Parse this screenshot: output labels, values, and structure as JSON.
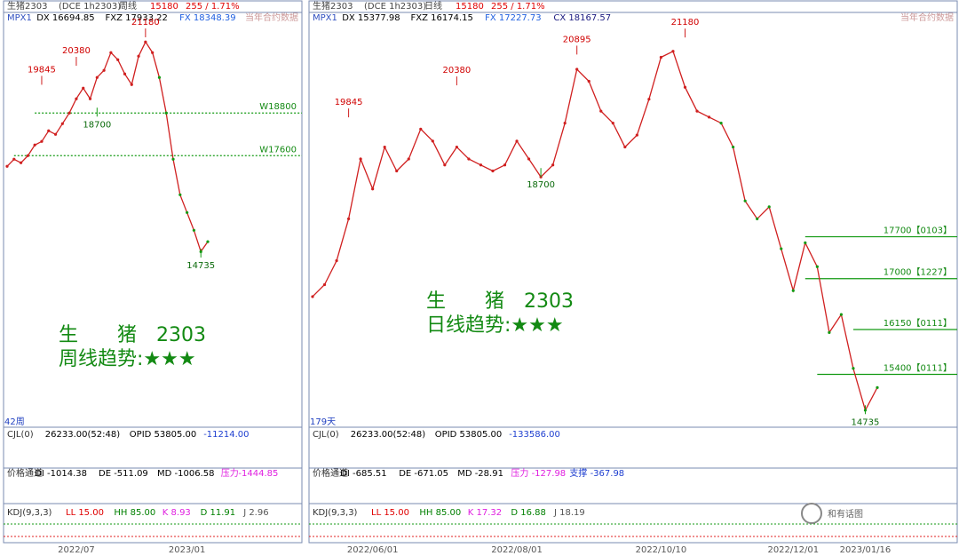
{
  "panels": [
    {
      "header": {
        "symbol": "生猪2303",
        "exchange": "(DCE 1h2303)",
        "period": "周线",
        "price": "15180",
        "change": "255 / 1.71%",
        "note": "当年合约数据"
      },
      "legend": [
        {
          "text": "MPX1",
          "color": "#3050c0"
        },
        {
          "text": "DX 16694.85",
          "color": "#000000"
        },
        {
          "text": "FXZ 17933.22",
          "color": "#000000"
        },
        {
          "text": "FX 18348.39",
          "color": "#2060e0"
        }
      ],
      "ylim": [
        10235,
        21630
      ],
      "close": [
        17300,
        17500,
        17400,
        17600,
        17900,
        18000,
        18300,
        18200,
        18500,
        18800,
        19200,
        19500,
        19200,
        19800,
        20000,
        20500,
        20300,
        19900,
        19600,
        20400,
        20800,
        20500,
        19800,
        18800,
        17500,
        16500,
        16000,
        15500,
        14900,
        15180
      ],
      "highs": [
        {
          "index": 5,
          "value": 19845
        },
        {
          "index": 10,
          "value": 20380
        },
        {
          "index": 20,
          "value": 21180
        }
      ],
      "lows": [
        {
          "index": 13,
          "value": 18700
        },
        {
          "index": 28,
          "value": 14735
        }
      ],
      "levels": [
        {
          "label": "W18800",
          "value": 18800,
          "from": 4
        },
        {
          "label": "W17600",
          "value": 17600,
          "from": 1
        }
      ],
      "title": "生　　猪　2303",
      "trend": "周线趋势:★★★",
      "bars": "42周",
      "cjl": [
        {
          "text": "CJL(0)",
          "color": "#333"
        },
        {
          "text": "26233.00(52:48)",
          "color": "#000"
        },
        {
          "text": "OPID 53805.00",
          "color": "#000"
        },
        {
          "text": "-11214.00",
          "color": "#2040d0"
        }
      ],
      "channel": [
        {
          "text": "价格通道",
          "color": "#333"
        },
        {
          "text": "DI -1014.38",
          "color": "#000"
        },
        {
          "text": "DE -511.09",
          "color": "#000"
        },
        {
          "text": "MD -1006.58",
          "color": "#000"
        },
        {
          "text": "压力",
          "color": "#e020e0"
        },
        {
          "text": "-1444.85",
          "color": "#e020e0"
        }
      ],
      "kdj": [
        {
          "text": "KDJ(9,3,3)",
          "color": "#333"
        },
        {
          "text": "LL 15.00",
          "color": "#e00000"
        },
        {
          "text": "HH 85.00",
          "color": "#008000"
        },
        {
          "text": "K 8.93",
          "color": "#e020e0"
        },
        {
          "text": "D 11.91",
          "color": "#008000"
        },
        {
          "text": "J 2.96",
          "color": "#555"
        }
      ],
      "dates": [
        {
          "index": 10,
          "label": "2022/07"
        },
        {
          "index": 26,
          "label": "2023/01"
        }
      ]
    },
    {
      "header": {
        "symbol": "生猪2303",
        "exchange": "(DCE 1h2303)",
        "period": "日线",
        "price": "15180",
        "change": "255 / 1.71%",
        "note": "当年合约数据"
      },
      "legend": [
        {
          "text": "MPX1",
          "color": "#3050c0"
        },
        {
          "text": "DX 15377.98",
          "color": "#000000"
        },
        {
          "text": "FXZ 16174.15",
          "color": "#000000"
        },
        {
          "text": "FX 17227.73",
          "color": "#2060e0"
        },
        {
          "text": "CX 18167.57",
          "color": "#1a1a80"
        }
      ],
      "ylim": [
        14680,
        21450
      ],
      "close": [
        16700,
        16900,
        17300,
        18000,
        19000,
        18500,
        19200,
        18800,
        19000,
        19500,
        19300,
        18900,
        19200,
        19000,
        18900,
        18800,
        18900,
        19300,
        19000,
        18700,
        18900,
        19600,
        20500,
        20300,
        19800,
        19600,
        19200,
        19400,
        20000,
        20700,
        20800,
        20200,
        19800,
        19700,
        19600,
        19200,
        18300,
        18000,
        18200,
        17500,
        16800,
        17600,
        17200,
        16100,
        16400,
        15500,
        14800,
        15180
      ],
      "highs": [
        {
          "index": 3,
          "value": 19845
        },
        {
          "index": 12,
          "value": 20380
        },
        {
          "index": 22,
          "value": 20895
        },
        {
          "index": 31,
          "value": 21180
        }
      ],
      "lows": [
        {
          "index": 19,
          "value": 18700
        },
        {
          "index": 46,
          "value": 14735
        }
      ],
      "levels": [
        {
          "label": "17700【0103】",
          "value": 17700,
          "from": 41
        },
        {
          "label": "17000【1227】",
          "value": 17000,
          "from": 41
        },
        {
          "label": "16150【0111】",
          "value": 16150,
          "from": 45
        },
        {
          "label": "15400【0111】",
          "value": 15400,
          "from": 42
        }
      ],
      "title": "生　　猪　2303",
      "trend": "日线趋势:★★★",
      "bars": "179天",
      "cjl": [
        {
          "text": "CJL(0)",
          "color": "#333"
        },
        {
          "text": "26233.00(52:48)",
          "color": "#000"
        },
        {
          "text": "OPID 53805.00",
          "color": "#000"
        },
        {
          "text": "-133586.00",
          "color": "#2040d0"
        }
      ],
      "channel": [
        {
          "text": "价格通道",
          "color": "#333"
        },
        {
          "text": "DI -685.51",
          "color": "#000"
        },
        {
          "text": "DE -671.05",
          "color": "#000"
        },
        {
          "text": "MD -28.91",
          "color": "#000"
        },
        {
          "text": "压力 -127.98",
          "color": "#e020e0"
        },
        {
          "text": "支撑 -367.98",
          "color": "#2040d0"
        }
      ],
      "kdj": [
        {
          "text": "KDJ(9,3,3)",
          "color": "#333"
        },
        {
          "text": "LL 15.00",
          "color": "#e00000"
        },
        {
          "text": "HH 85.00",
          "color": "#008000"
        },
        {
          "text": "K 17.32",
          "color": "#e020e0"
        },
        {
          "text": "D 16.88",
          "color": "#008000"
        },
        {
          "text": "J 18.19",
          "color": "#555"
        }
      ],
      "dates": [
        {
          "index": 5,
          "label": "2022/06/01"
        },
        {
          "index": 17,
          "label": "2022/08/01"
        },
        {
          "index": 29,
          "label": "2022/10/10"
        },
        {
          "index": 40,
          "label": "2022/12/01"
        },
        {
          "index": 46,
          "label": "2023/01/16"
        }
      ]
    }
  ],
  "watermark": "和有话图"
}
